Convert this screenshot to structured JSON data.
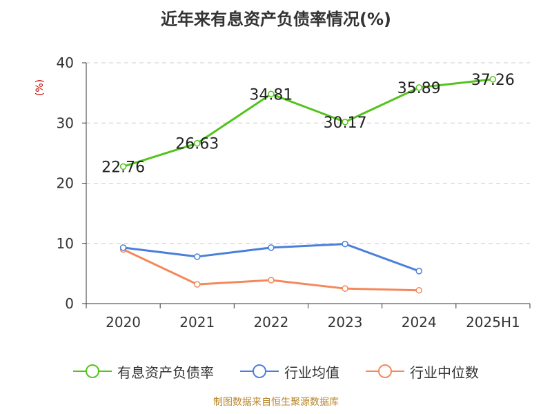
{
  "title": "近年来有息资产负债率情况(%)",
  "source": "制图数据来自恒生聚源数据库",
  "legend": [
    {
      "label": "有息资产负债率",
      "color": "#52c41a"
    },
    {
      "label": "行业均值",
      "color": "#4a7fdc"
    },
    {
      "label": "行业中位数",
      "color": "#f4885a"
    }
  ],
  "chart_data": {
    "type": "line",
    "categories": [
      "2020",
      "2021",
      "2022",
      "2023",
      "2024",
      "2025H1"
    ],
    "ylabel": "(%)",
    "ylim": [
      0,
      40
    ],
    "yticks": [
      0,
      10,
      20,
      30,
      40
    ],
    "grid": true,
    "legend_position": "bottom",
    "series": [
      {
        "name": "有息资产负债率",
        "color": "#52c41a",
        "values": [
          22.76,
          26.63,
          34.81,
          30.17,
          35.89,
          37.26
        ],
        "labels": [
          "22.76",
          "26.63",
          "34.81",
          "30.17",
          "35.89",
          "37.26"
        ]
      },
      {
        "name": "行业均值",
        "color": "#4a7fdc",
        "values": [
          9.3,
          7.8,
          9.3,
          9.9,
          5.4,
          null
        ]
      },
      {
        "name": "行业中位数",
        "color": "#f4885a",
        "values": [
          9.0,
          3.2,
          3.9,
          2.5,
          2.2,
          null
        ]
      }
    ]
  }
}
